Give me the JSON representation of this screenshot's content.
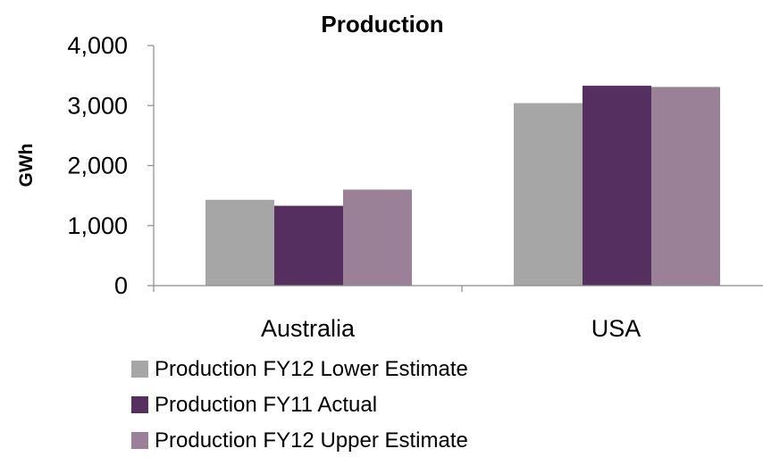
{
  "chart_data": {
    "type": "bar",
    "title": "Production",
    "xlabel": "",
    "ylabel": "GWh",
    "categories": [
      "Australia",
      "USA"
    ],
    "series": [
      {
        "name": "Production FY12 Lower Estimate",
        "color": "#a6a6a6",
        "values": [
          1430,
          3040
        ]
      },
      {
        "name": "Production FY11 Actual",
        "color": "#542f5f",
        "values": [
          1330,
          3330
        ]
      },
      {
        "name": "Production FY12 Upper Estimate",
        "color": "#9a8198",
        "values": [
          1600,
          3310
        ]
      }
    ],
    "ylim": [
      0,
      4000
    ],
    "yticks": [
      0,
      1000,
      2000,
      3000,
      4000
    ],
    "ytick_labels": [
      "0",
      "1,000",
      "2,000",
      "3,000",
      "4,000"
    ],
    "grid": false,
    "legend_position": "bottom"
  }
}
